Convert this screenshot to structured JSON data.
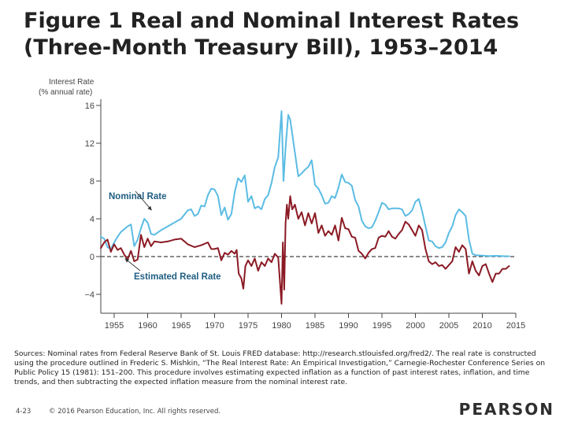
{
  "slide": {
    "title_line1": "Figure 1 Real and Nominal Interest Rates",
    "title_line2": "(Three-Month Treasury Bill), 1953–2014",
    "sources": "Sources: Nominal rates from Federal Reserve Bank of St. Louis FRED database: http://research.stlouisfed.org/fred2/. The real rate is constructed using the procedure outlined in Frederic S. Mishkin, “The Real Interest Rate: An Empirical Investigation,” Carnegie-Rochester Conference Series on Public Policy 15 (1981): 151–200. This procedure involves estimating expected inflation as a function of past interest rates, inflation, and time trends, and then subtracting the expected inflation measure from the nominal interest rate.",
    "slide_number": "4-23",
    "copyright": "© 2016 Pearson Education, Inc. All rights reserved.",
    "brand": "PEARSON"
  },
  "chart_data": {
    "type": "line",
    "title": "Figure 1 Real and Nominal Interest Rates (Three-Month Treasury Bill), 1953–2014",
    "ylabel_line1": "Interest Rate",
    "ylabel_line2": "(% annual rate)",
    "xlabel": "",
    "xlim": [
      1953,
      2015
    ],
    "ylim": [
      -6,
      16
    ],
    "yticks": [
      -4,
      0,
      4,
      8,
      12,
      16
    ],
    "ytick_labels": [
      "−4",
      "0",
      "4",
      "8",
      "12",
      "16"
    ],
    "xticks": [
      1955,
      1960,
      1965,
      1970,
      1975,
      1980,
      1985,
      1990,
      1995,
      2000,
      2005,
      2010,
      2015
    ],
    "xtick_labels": [
      "1955",
      "1960",
      "1965",
      "1970",
      "1975",
      "1980",
      "1985",
      "1990",
      "1995",
      "2000",
      "2005",
      "2010",
      "2015"
    ],
    "zero_line": "dashed",
    "colors": {
      "nominal": "#5bbce4",
      "real": "#8b1a24",
      "axis": "#444444",
      "label": "#1f5e82",
      "title": "#222222"
    },
    "annotations": [
      {
        "text": "Nominal Rate",
        "series": "Nominal Rate",
        "points_to": [
          1960.6,
          4.9
        ]
      },
      {
        "text": "Estimated Real Rate",
        "series": "Estimated Real Rate",
        "points_to": [
          1956.6,
          -0.2
        ]
      }
    ],
    "series": [
      {
        "name": "Nominal Rate",
        "x": [
          1953,
          1953.5,
          1954,
          1954.5,
          1955,
          1955.5,
          1956,
          1956.5,
          1957,
          1957.5,
          1958,
          1958.5,
          1959,
          1959.5,
          1960,
          1960.5,
          1961,
          1962,
          1963,
          1964,
          1965,
          1966,
          1966.5,
          1967,
          1967.5,
          1968,
          1968.5,
          1969,
          1969.5,
          1970,
          1970.5,
          1971,
          1971.5,
          1972,
          1972.5,
          1973,
          1973.5,
          1974,
          1974.5,
          1975,
          1975.5,
          1976,
          1976.5,
          1977,
          1977.5,
          1978,
          1978.5,
          1979,
          1979.5,
          1980,
          1980.3,
          1980.6,
          1981,
          1981.3,
          1981.6,
          1982,
          1982.5,
          1983,
          1983.5,
          1984,
          1984.5,
          1985,
          1985.5,
          1986,
          1986.5,
          1987,
          1987.5,
          1988,
          1988.5,
          1989,
          1989.5,
          1990,
          1990.5,
          1991,
          1991.5,
          1992,
          1992.5,
          1993,
          1993.5,
          1994,
          1994.5,
          1995,
          1995.5,
          1996,
          1996.5,
          1997,
          1997.5,
          1998,
          1998.5,
          1999,
          1999.5,
          2000,
          2000.5,
          2001,
          2001.5,
          2002,
          2002.5,
          2003,
          2003.5,
          2004,
          2004.5,
          2005,
          2005.5,
          2006,
          2006.5,
          2007,
          2007.5,
          2008,
          2008.5,
          2009,
          2010,
          2011,
          2012,
          2013,
          2014
        ],
        "values": [
          2.1,
          1.9,
          1.0,
          0.8,
          1.5,
          2.1,
          2.6,
          2.9,
          3.2,
          3.4,
          1.1,
          1.8,
          3.0,
          4.0,
          3.6,
          2.4,
          2.3,
          2.8,
          3.2,
          3.6,
          4.0,
          4.9,
          5.0,
          4.3,
          4.5,
          5.4,
          5.3,
          6.5,
          7.2,
          7.1,
          6.4,
          4.4,
          5.2,
          3.9,
          4.5,
          6.8,
          8.3,
          7.9,
          8.6,
          5.8,
          6.4,
          5.1,
          5.3,
          5.0,
          6.1,
          6.5,
          7.8,
          9.5,
          10.5,
          15.4,
          8.0,
          11.5,
          15.0,
          14.5,
          13.0,
          11.0,
          8.5,
          8.8,
          9.2,
          9.5,
          10.2,
          7.6,
          7.2,
          6.5,
          5.6,
          5.7,
          6.4,
          6.2,
          7.3,
          8.7,
          7.9,
          7.8,
          7.5,
          6.0,
          5.3,
          3.8,
          3.2,
          3.0,
          3.1,
          3.8,
          4.7,
          5.7,
          5.5,
          5.0,
          5.1,
          5.1,
          5.1,
          5.0,
          4.3,
          4.5,
          4.9,
          5.8,
          6.1,
          4.8,
          3.2,
          1.7,
          1.6,
          1.1,
          0.9,
          1.0,
          1.5,
          2.5,
          3.2,
          4.4,
          5.0,
          4.7,
          4.3,
          1.8,
          0.3,
          0.15,
          0.1,
          0.05,
          0.08,
          0.05,
          0.03
        ]
      },
      {
        "name": "Estimated Real Rate",
        "x": [
          1953,
          1953.5,
          1954,
          1954.5,
          1955,
          1955.5,
          1956,
          1956.5,
          1957,
          1957.5,
          1958,
          1958.5,
          1959,
          1959.5,
          1960,
          1960.5,
          1961,
          1962,
          1963,
          1964,
          1965,
          1966,
          1967,
          1968,
          1969,
          1969.5,
          1970,
          1970.5,
          1971,
          1971.5,
          1972,
          1972.5,
          1973,
          1973.3,
          1973.6,
          1974,
          1974.3,
          1974.6,
          1975,
          1975.5,
          1976,
          1976.5,
          1977,
          1977.5,
          1978,
          1978.5,
          1979,
          1979.5,
          1980,
          1980.2,
          1980.4,
          1980.6,
          1980.8,
          1981,
          1981.3,
          1981.6,
          1982,
          1982.5,
          1983,
          1983.5,
          1984,
          1984.5,
          1985,
          1985.5,
          1986,
          1986.5,
          1987,
          1987.5,
          1988,
          1988.5,
          1989,
          1989.5,
          1990,
          1990.5,
          1991,
          1991.5,
          1992,
          1992.5,
          1993,
          1993.5,
          1994,
          1994.5,
          1995,
          1995.5,
          1996,
          1996.5,
          1997,
          1997.5,
          1998,
          1998.5,
          1999,
          1999.5,
          2000,
          2000.5,
          2001,
          2001.5,
          2002,
          2002.5,
          2003,
          2003.5,
          2004,
          2004.5,
          2005,
          2005.5,
          2006,
          2006.5,
          2007,
          2007.5,
          2008,
          2008.5,
          2009,
          2009.5,
          2010,
          2010.5,
          2011,
          2011.5,
          2012,
          2012.5,
          2013,
          2013.5,
          2014
        ],
        "values": [
          0.9,
          1.5,
          1.8,
          0.5,
          1.3,
          0.7,
          0.9,
          0.2,
          -0.3,
          0.6,
          -0.5,
          -0.3,
          2.3,
          1.0,
          1.9,
          1.1,
          1.6,
          1.5,
          1.6,
          1.8,
          1.9,
          1.3,
          1.0,
          1.2,
          1.5,
          0.8,
          0.8,
          0.9,
          -0.4,
          0.4,
          0.2,
          0.6,
          0.3,
          0.7,
          -1.8,
          -2.3,
          -3.4,
          -1.0,
          -0.4,
          -1.0,
          -0.2,
          -1.5,
          -0.6,
          -1.0,
          -0.2,
          -0.6,
          0.3,
          -0.1,
          -5.0,
          1.5,
          -3.5,
          3.5,
          5.5,
          4.0,
          6.4,
          5.0,
          5.5,
          4.0,
          4.7,
          3.3,
          4.6,
          3.5,
          4.6,
          2.5,
          3.3,
          2.2,
          2.7,
          2.3,
          3.3,
          1.7,
          4.1,
          3.0,
          2.9,
          2.1,
          2.0,
          0.6,
          0.3,
          -0.2,
          0.4,
          0.8,
          0.9,
          2.0,
          2.2,
          2.1,
          2.7,
          2.1,
          1.9,
          2.4,
          2.8,
          3.7,
          3.4,
          2.8,
          2.2,
          3.3,
          2.8,
          0.8,
          -0.5,
          -0.8,
          -0.6,
          -1.0,
          -0.9,
          -1.3,
          -0.9,
          -0.5,
          1.0,
          0.5,
          1.2,
          0.8,
          -1.8,
          -0.5,
          -1.5,
          -2.0,
          -1.0,
          -0.8,
          -1.8,
          -2.7,
          -1.8,
          -1.8,
          -1.3,
          -1.3,
          -1.0
        ]
      }
    ]
  }
}
